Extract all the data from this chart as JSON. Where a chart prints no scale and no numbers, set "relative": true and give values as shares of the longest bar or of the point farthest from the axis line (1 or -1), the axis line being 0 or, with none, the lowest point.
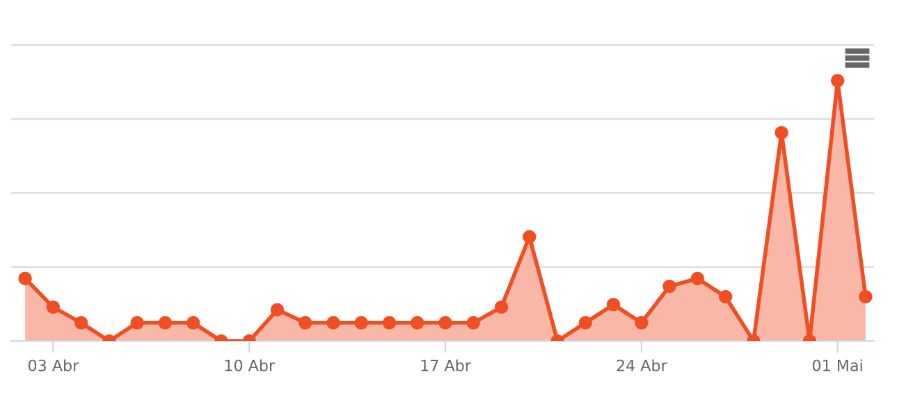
{
  "chart_data": {
    "type": "area",
    "relative": true,
    "categories": [
      null,
      "03 Abr",
      null,
      null,
      null,
      null,
      null,
      null,
      "10 Abr",
      null,
      null,
      null,
      null,
      null,
      null,
      "17 Abr",
      null,
      null,
      null,
      null,
      null,
      null,
      "24 Abr",
      null,
      null,
      null,
      null,
      null,
      null,
      "01 Mai",
      null
    ],
    "series": [
      {
        "color": "#f04e23",
        "values": [
          0.24,
          0.13,
          0.07,
          0,
          0.07,
          0.07,
          0.07,
          0,
          0,
          0.12,
          0.07,
          0.07,
          0.07,
          0.07,
          0.07,
          0.07,
          0.07,
          0.13,
          0.4,
          0,
          0.07,
          0.14,
          0.07,
          0.21,
          0.24,
          0.17,
          0,
          0.8,
          0,
          1,
          0.17
        ]
      }
    ],
    "grid": "y",
    "marker": "circle",
    "legend": false
  }
}
